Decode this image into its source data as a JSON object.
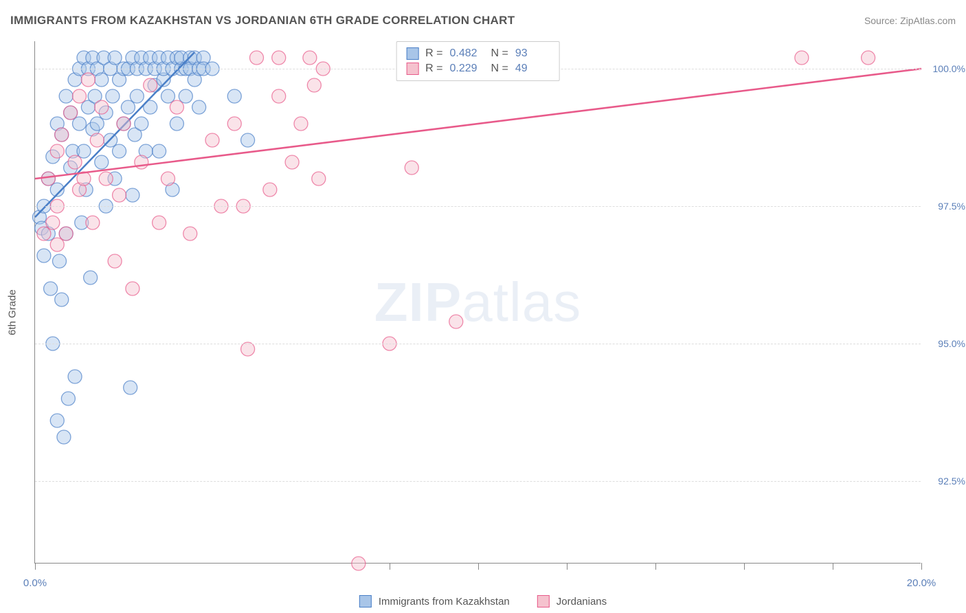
{
  "title": "IMMIGRANTS FROM KAZAKHSTAN VS JORDANIAN 6TH GRADE CORRELATION CHART",
  "source": "Source: ZipAtlas.com",
  "ylabel": "6th Grade",
  "watermark_bold": "ZIP",
  "watermark_rest": "atlas",
  "chart": {
    "type": "scatter-with-trend",
    "xlim": [
      0,
      20
    ],
    "ylim": [
      91,
      100.5
    ],
    "x_ticks": [
      0,
      8,
      10,
      12,
      14,
      16,
      18,
      20
    ],
    "x_tick_labels": {
      "0": "0.0%",
      "20": "20.0%"
    },
    "y_ticks": [
      100.0,
      97.5,
      95.0,
      92.5
    ],
    "y_tick_labels": [
      "100.0%",
      "97.5%",
      "95.0%",
      "92.5%"
    ],
    "background_color": "#ffffff",
    "grid_color": "#dddddd",
    "axis_color": "#888888",
    "marker_radius": 10,
    "marker_opacity": 0.45,
    "series": [
      {
        "name": "Immigrants from Kazakhstan",
        "color_fill": "#a8c5e8",
        "color_stroke": "#4a7fc7",
        "R": "0.482",
        "N": "93",
        "trend": {
          "x1": 0,
          "y1": 97.3,
          "x2": 3.6,
          "y2": 100.3
        },
        "points": [
          [
            0.1,
            97.3
          ],
          [
            0.15,
            97.1
          ],
          [
            0.2,
            96.6
          ],
          [
            0.2,
            97.5
          ],
          [
            0.3,
            98.0
          ],
          [
            0.3,
            97.0
          ],
          [
            0.35,
            96.0
          ],
          [
            0.4,
            98.4
          ],
          [
            0.4,
            95.0
          ],
          [
            0.5,
            97.8
          ],
          [
            0.5,
            99.0
          ],
          [
            0.5,
            93.6
          ],
          [
            0.55,
            96.5
          ],
          [
            0.6,
            95.8
          ],
          [
            0.6,
            98.8
          ],
          [
            0.65,
            93.3
          ],
          [
            0.7,
            99.5
          ],
          [
            0.7,
            97.0
          ],
          [
            0.75,
            94.0
          ],
          [
            0.8,
            98.2
          ],
          [
            0.8,
            99.2
          ],
          [
            0.85,
            98.5
          ],
          [
            0.9,
            99.8
          ],
          [
            0.9,
            94.4
          ],
          [
            1.0,
            100.0
          ],
          [
            1.0,
            99.0
          ],
          [
            1.05,
            97.2
          ],
          [
            1.1,
            98.5
          ],
          [
            1.1,
            100.2
          ],
          [
            1.15,
            97.8
          ],
          [
            1.2,
            99.3
          ],
          [
            1.2,
            100.0
          ],
          [
            1.25,
            96.2
          ],
          [
            1.3,
            98.9
          ],
          [
            1.3,
            100.2
          ],
          [
            1.35,
            99.5
          ],
          [
            1.4,
            99.0
          ],
          [
            1.4,
            100.0
          ],
          [
            1.5,
            98.3
          ],
          [
            1.5,
            99.8
          ],
          [
            1.55,
            100.2
          ],
          [
            1.6,
            97.5
          ],
          [
            1.6,
            99.2
          ],
          [
            1.7,
            98.7
          ],
          [
            1.7,
            100.0
          ],
          [
            1.75,
            99.5
          ],
          [
            1.8,
            98.0
          ],
          [
            1.8,
            100.2
          ],
          [
            1.9,
            98.5
          ],
          [
            1.9,
            99.8
          ],
          [
            2.0,
            99.0
          ],
          [
            2.0,
            100.0
          ],
          [
            2.1,
            100.0
          ],
          [
            2.1,
            99.3
          ],
          [
            2.15,
            94.2
          ],
          [
            2.2,
            100.2
          ],
          [
            2.2,
            97.7
          ],
          [
            2.25,
            98.8
          ],
          [
            2.3,
            99.5
          ],
          [
            2.3,
            100.0
          ],
          [
            2.4,
            100.2
          ],
          [
            2.4,
            99.0
          ],
          [
            2.5,
            100.0
          ],
          [
            2.5,
            98.5
          ],
          [
            2.6,
            100.2
          ],
          [
            2.6,
            99.3
          ],
          [
            2.7,
            99.7
          ],
          [
            2.7,
            100.0
          ],
          [
            2.8,
            100.2
          ],
          [
            2.8,
            98.5
          ],
          [
            2.9,
            99.8
          ],
          [
            2.9,
            100.0
          ],
          [
            3.0,
            100.2
          ],
          [
            3.0,
            99.5
          ],
          [
            3.1,
            100.0
          ],
          [
            3.1,
            97.8
          ],
          [
            3.2,
            100.2
          ],
          [
            3.2,
            99.0
          ],
          [
            3.3,
            100.0
          ],
          [
            3.3,
            100.2
          ],
          [
            3.4,
            99.5
          ],
          [
            3.4,
            100.0
          ],
          [
            3.5,
            100.2
          ],
          [
            3.5,
            100.0
          ],
          [
            3.6,
            99.8
          ],
          [
            3.6,
            100.2
          ],
          [
            3.7,
            100.0
          ],
          [
            3.7,
            99.3
          ],
          [
            3.8,
            100.2
          ],
          [
            3.8,
            100.0
          ],
          [
            4.0,
            100.0
          ],
          [
            4.5,
            99.5
          ],
          [
            4.8,
            98.7
          ]
        ]
      },
      {
        "name": "Jordanians",
        "color_fill": "#f5c2ce",
        "color_stroke": "#e85a8a",
        "R": "0.229",
        "N": "49",
        "trend": {
          "x1": 0,
          "y1": 98.0,
          "x2": 20,
          "y2": 100.0
        },
        "points": [
          [
            0.2,
            97.0
          ],
          [
            0.3,
            98.0
          ],
          [
            0.4,
            97.2
          ],
          [
            0.5,
            98.5
          ],
          [
            0.5,
            97.5
          ],
          [
            0.6,
            98.8
          ],
          [
            0.7,
            97.0
          ],
          [
            0.8,
            99.2
          ],
          [
            0.9,
            98.3
          ],
          [
            1.0,
            97.8
          ],
          [
            1.0,
            99.5
          ],
          [
            1.1,
            98.0
          ],
          [
            1.2,
            99.8
          ],
          [
            1.3,
            97.2
          ],
          [
            1.4,
            98.7
          ],
          [
            1.5,
            99.3
          ],
          [
            1.6,
            98.0
          ],
          [
            1.8,
            96.5
          ],
          [
            1.9,
            97.7
          ],
          [
            2.0,
            99.0
          ],
          [
            2.2,
            96.0
          ],
          [
            2.4,
            98.3
          ],
          [
            2.6,
            99.7
          ],
          [
            2.8,
            97.2
          ],
          [
            3.0,
            98.0
          ],
          [
            3.2,
            99.3
          ],
          [
            3.5,
            97.0
          ],
          [
            4.0,
            98.7
          ],
          [
            4.2,
            97.5
          ],
          [
            4.5,
            99.0
          ],
          [
            4.7,
            97.5
          ],
          [
            4.8,
            94.9
          ],
          [
            5.0,
            100.2
          ],
          [
            5.3,
            97.8
          ],
          [
            5.5,
            99.5
          ],
          [
            5.5,
            100.2
          ],
          [
            5.8,
            98.3
          ],
          [
            6.0,
            99.0
          ],
          [
            6.2,
            100.2
          ],
          [
            6.3,
            99.7
          ],
          [
            6.4,
            98.0
          ],
          [
            6.5,
            100.0
          ],
          [
            7.3,
            91.0
          ],
          [
            8.0,
            95.0
          ],
          [
            8.5,
            98.2
          ],
          [
            9.5,
            95.4
          ],
          [
            17.3,
            100.2
          ],
          [
            18.8,
            100.2
          ],
          [
            0.5,
            96.8
          ]
        ]
      }
    ]
  },
  "legend_bottom": [
    {
      "label": "Immigrants from Kazakhstan",
      "fill": "#a8c5e8",
      "stroke": "#4a7fc7"
    },
    {
      "label": "Jordanians",
      "fill": "#f5c2ce",
      "stroke": "#e85a8a"
    }
  ]
}
